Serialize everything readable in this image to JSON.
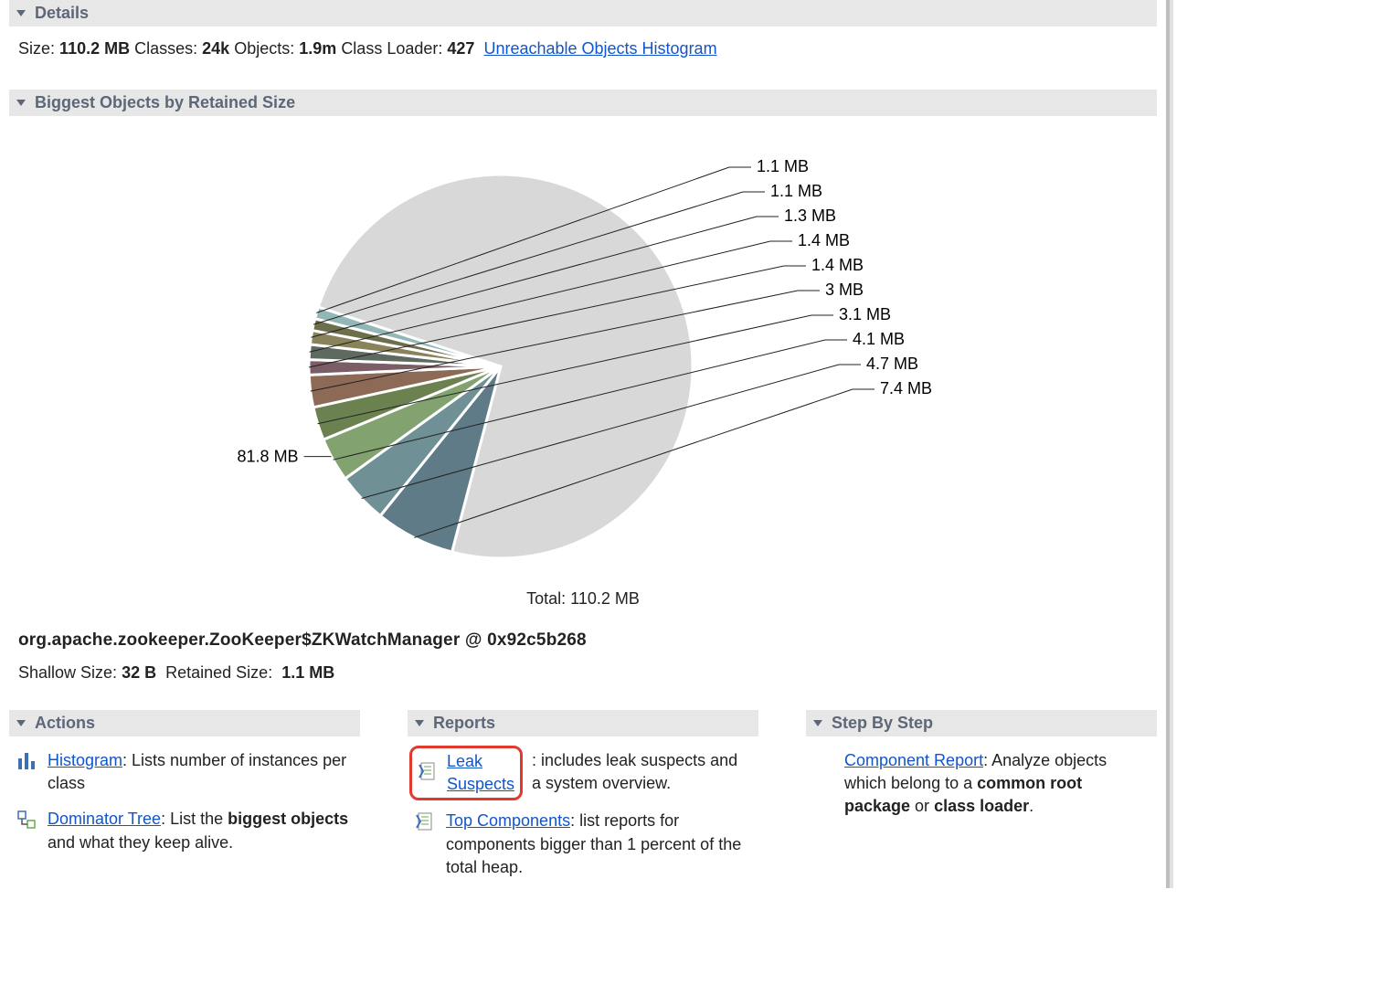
{
  "details": {
    "title": "Details",
    "size_label": "Size:",
    "size_value": "110.2 MB",
    "classes_label": "Classes:",
    "classes_value": "24k",
    "objects_label": "Objects:",
    "objects_value": "1.9m",
    "classloader_label": "Class Loader:",
    "classloader_value": "427",
    "unreachable_link": "Unreachable Objects Histogram"
  },
  "biggest": {
    "title": "Biggest Objects by Retained Size",
    "total_label": "Total: 110.2 MB",
    "selected_object": "org.apache.zookeeper.ZooKeeper$ZKWatchManager @ 0x92c5b268",
    "shallow_label": "Shallow Size:",
    "shallow_value": "32 B",
    "retained_label": "Retained Size:",
    "retained_value": "1.1 MB",
    "chart": {
      "type": "pie",
      "slices": [
        {
          "label": "81.8 MB",
          "value": 81.8,
          "color": "#d8d8d8"
        },
        {
          "label": "7.4 MB",
          "value": 7.4,
          "color": "#5f7b87"
        },
        {
          "label": "4.7 MB",
          "value": 4.7,
          "color": "#6f9196"
        },
        {
          "label": "4.1 MB",
          "value": 4.1,
          "color": "#82a270"
        },
        {
          "label": "3.1 MB",
          "value": 3.1,
          "color": "#6c8150"
        },
        {
          "label": "3 MB",
          "value": 3.0,
          "color": "#8c6a56"
        },
        {
          "label": "1.4 MB",
          "value": 1.4,
          "color": "#7a5d65"
        },
        {
          "label": "1.4 MB",
          "value": 1.4,
          "color": "#5e6a60"
        },
        {
          "label": "1.3 MB",
          "value": 1.3,
          "color": "#89825a"
        },
        {
          "label": "1.1 MB",
          "value": 1.1,
          "color": "#6d6e4b"
        },
        {
          "label": "1.1 MB",
          "value": 1.1,
          "color": "#92b7b6"
        }
      ],
      "radius": 210,
      "stroke": "#ffffff",
      "stroke_width": 3,
      "start_angle_deg": -162,
      "label_fontsize": 18,
      "lead_line_color": "#222222",
      "big_label_angle_offset": -46
    }
  },
  "actions": {
    "title": "Actions",
    "items": [
      {
        "icon": "bars",
        "link": "Histogram",
        "rest": ": Lists number of instances per class"
      },
      {
        "icon": "tree",
        "link": "Dominator Tree",
        "rest_pre": ": List the ",
        "bold": "biggest objects",
        "rest_post": " and what they keep alive."
      }
    ]
  },
  "reports": {
    "title": "Reports",
    "items": [
      {
        "icon": "report",
        "link": "Leak Suspects",
        "rest": ": includes leak suspects and a system overview.",
        "highlight": true
      },
      {
        "icon": "report",
        "link": "Top Components",
        "rest": ": list reports for components bigger than 1 percent of the total heap."
      }
    ]
  },
  "stepbystep": {
    "title": "Step By Step",
    "items": [
      {
        "link": "Component Report",
        "rest_pre": ": Analyze objects which belong to a ",
        "bold": "common root package",
        "mid": " or ",
        "bold2": "class loader",
        "rest_post": "."
      }
    ]
  }
}
